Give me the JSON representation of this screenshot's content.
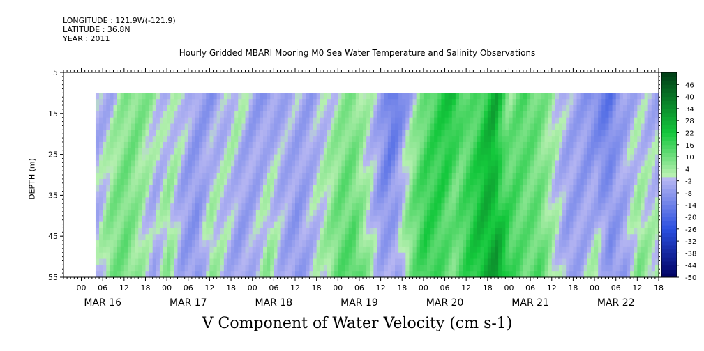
{
  "header": {
    "longitude": "LONGITUDE : 121.9W(-121.9)",
    "latitude": "LATITUDE : 36.8N",
    "year": "YEAR : 2011",
    "title": "Hourly Gridded MBARI Mooring M0 Sea Water Temperature and Salinity Observations"
  },
  "chart_data": {
    "type": "heatmap",
    "title": "V Component of Water Velocity (cm s-1)",
    "ylabel": "DEPTH (m)",
    "xlabel": "",
    "y_ticks": [
      "5",
      "15",
      "25",
      "35",
      "45",
      "55"
    ],
    "y_tick_values": [
      5,
      15,
      25,
      35,
      45,
      55
    ],
    "ylim": [
      5,
      55
    ],
    "y_data_range": [
      10,
      55
    ],
    "x_hour_ticks": [
      "00",
      "06",
      "12",
      "18",
      "00",
      "06",
      "12",
      "18",
      "00",
      "06",
      "12",
      "18",
      "00",
      "06",
      "12",
      "18",
      "00",
      "06",
      "12",
      "18",
      "00",
      "06",
      "12",
      "18",
      "00",
      "06",
      "12",
      "18"
    ],
    "x_day_labels": [
      "MAR 16",
      "MAR 17",
      "MAR 18",
      "MAR 19",
      "MAR 20",
      "MAR 21",
      "MAR 22"
    ],
    "x_range_hours": [
      -5,
      162
    ],
    "data_start_hour": 4,
    "colorbar": {
      "labels": [
        "46",
        "40",
        "34",
        "28",
        "22",
        "16",
        "10",
        "4",
        "-2",
        "-8",
        "-14",
        "-20",
        "-26",
        "-32",
        "-38",
        "-44",
        "-50"
      ],
      "values": [
        46,
        40,
        34,
        28,
        22,
        16,
        10,
        4,
        -2,
        -8,
        -14,
        -20,
        -26,
        -32,
        -38,
        -44,
        -50
      ],
      "range": [
        -50,
        52
      ],
      "colors": {
        "neg_dark": "#000060",
        "neg_mid": "#2a4fe0",
        "neg_light": "#b6b6f2",
        "pos_light": "#b6f0b0",
        "pos_mid": "#14c83c",
        "pos_dark": "#003d16"
      }
    },
    "velocity_profile": {
      "hours": [
        4,
        8,
        12,
        16,
        20,
        24,
        28,
        32,
        36,
        40,
        44,
        48,
        52,
        56,
        60,
        64,
        68,
        72,
        76,
        80,
        84,
        88,
        92,
        96,
        100,
        104,
        108,
        112,
        116,
        120,
        124,
        128,
        132,
        136,
        140,
        144,
        148,
        152,
        156,
        160
      ],
      "surface": [
        -4,
        -3,
        6,
        9,
        4,
        -3,
        2,
        -6,
        -8,
        -3,
        3,
        -6,
        -8,
        -4,
        -3,
        -6,
        -2,
        3,
        8,
        2,
        -6,
        -18,
        -4,
        10,
        18,
        24,
        10,
        16,
        28,
        6,
        14,
        10,
        4,
        -3,
        -6,
        -12,
        -16,
        -6,
        -2,
        -4
      ],
      "bottom": [
        -2,
        8,
        10,
        4,
        -4,
        6,
        -6,
        -8,
        5,
        -2,
        -6,
        -2,
        6,
        -4,
        -8,
        -3,
        3,
        12,
        16,
        6,
        -4,
        -6,
        8,
        18,
        14,
        10,
        18,
        24,
        34,
        16,
        12,
        14,
        4,
        -6,
        -3,
        4,
        -10,
        -6,
        8,
        3
      ]
    }
  }
}
